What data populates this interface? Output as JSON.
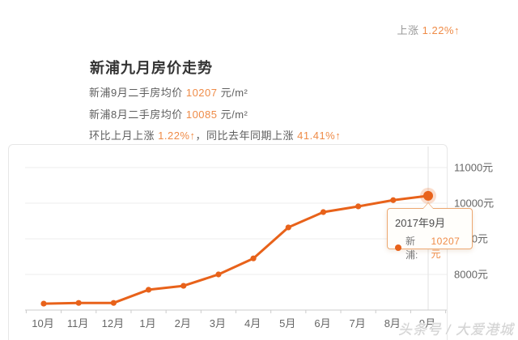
{
  "header": {
    "change_label": "上涨",
    "change_value": "1.22%",
    "change_arrow": "↑"
  },
  "summary": {
    "title": "新浦九月房价走势",
    "line1": {
      "prefix": "新浦9月二手房均价 ",
      "value": "10207",
      "unit": " 元/m²"
    },
    "line2": {
      "prefix": "新浦8月二手房均价 ",
      "value": "10085",
      "unit": " 元/m²"
    },
    "line3": {
      "prefix1": "环比上月上涨 ",
      "value1": "1.22%↑",
      "separator": "，",
      "prefix2": "同比去年同期上涨 ",
      "value2": "41.41%↑"
    }
  },
  "chart_data": {
    "type": "line",
    "title": "新浦九月房价走势",
    "categories": [
      "10月",
      "11月",
      "12月",
      "1月",
      "2月",
      "3月",
      "4月",
      "5月",
      "6月",
      "7月",
      "8月",
      "9月"
    ],
    "series": [
      {
        "name": "新浦",
        "values": [
          7180,
          7200,
          7200,
          7570,
          7680,
          8000,
          8450,
          9320,
          9750,
          9910,
          10085,
          10207
        ]
      }
    ],
    "y_axis": [
      {
        "value": 11000,
        "label": "11000元"
      },
      {
        "value": 10000,
        "label": "10000元"
      },
      {
        "value": 9000,
        "label": "9000元"
      },
      {
        "value": 8000,
        "label": "8000元"
      }
    ],
    "ylim": [
      7000,
      11500
    ],
    "xlabel": "",
    "ylabel": "",
    "grid": true,
    "legend_position": "none",
    "line_color": "#e8621a",
    "grid_color": "#ededed",
    "axis_color": "#cccccc",
    "crosshair_color": "#e2e2e2",
    "highlight_index": 11,
    "tooltip": {
      "title": "2017年9月",
      "series_label": "新浦:",
      "value": "10207元"
    }
  },
  "watermark": {
    "text": "头条号 / 大爱港城"
  }
}
